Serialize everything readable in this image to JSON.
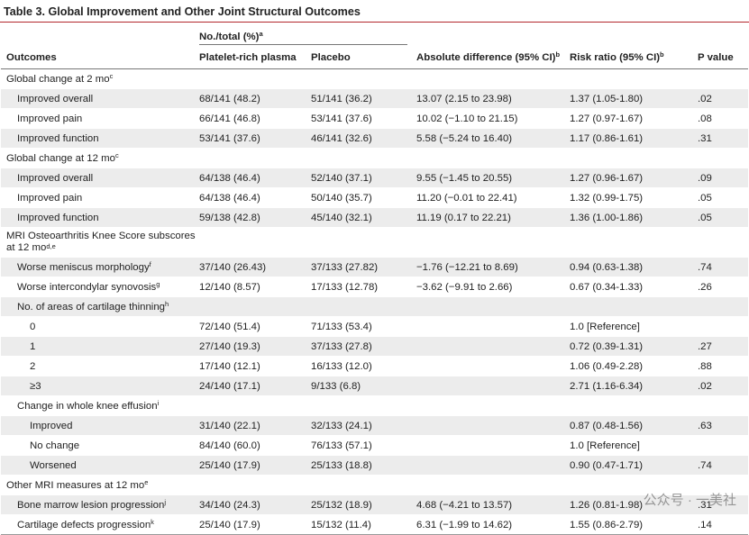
{
  "title": "Table 3. Global Improvement and Other Joint Structural Outcomes",
  "header": {
    "group": {
      "text": "No./total (%)",
      "sup": "a"
    },
    "columns": [
      {
        "text": "Outcomes"
      },
      {
        "text": "Platelet-rich plasma"
      },
      {
        "text": "Placebo"
      },
      {
        "text": "Absolute difference (95% CI)",
        "sup": "b"
      },
      {
        "text": "Risk ratio (95% CI)",
        "sup": "b"
      },
      {
        "text": "P value"
      }
    ]
  },
  "sections": [
    {
      "label": "Global change at 2 mo",
      "sup": "c",
      "items": [
        {
          "label": "Improved overall",
          "cells": [
            "68/141 (48.2)",
            "51/141 (36.2)",
            "13.07 (2.15 to 23.98)",
            "1.37 (1.05-1.80)",
            ".02"
          ]
        },
        {
          "label": "Improved pain",
          "cells": [
            "66/141 (46.8)",
            "53/141 (37.6)",
            "10.02 (−1.10 to 21.15)",
            "1.27 (0.97-1.67)",
            ".08"
          ]
        },
        {
          "label": "Improved function",
          "cells": [
            "53/141 (37.6)",
            "46/141 (32.6)",
            "5.58 (−5.24 to 16.40)",
            "1.17 (0.86-1.61)",
            ".31"
          ]
        }
      ]
    },
    {
      "label": "Global change at 12 mo",
      "sup": "c",
      "items": [
        {
          "label": "Improved overall",
          "cells": [
            "64/138 (46.4)",
            "52/140 (37.1)",
            "9.55 (−1.45 to 20.55)",
            "1.27 (0.96-1.67)",
            ".09"
          ]
        },
        {
          "label": "Improved pain",
          "cells": [
            "64/138 (46.4)",
            "50/140 (35.7)",
            "11.20 (−0.01 to 22.41)",
            "1.32 (0.99-1.75)",
            ".05"
          ]
        },
        {
          "label": "Improved function",
          "cells": [
            "59/138 (42.8)",
            "45/140 (32.1)",
            "11.19 (0.17 to 22.21)",
            "1.36 (1.00-1.86)",
            ".05"
          ]
        }
      ]
    },
    {
      "label": "MRI Osteoarthritis Knee Score subscores at 12 mo",
      "sup": "d,e",
      "items": [
        {
          "label": "Worse meniscus morphology",
          "sup": "f",
          "cells": [
            "37/140 (26.43)",
            "37/133 (27.82)",
            "−1.76 (−12.21 to 8.69)",
            "0.94 (0.63-1.38)",
            ".74"
          ]
        },
        {
          "label": "Worse intercondylar synovosis",
          "sup": "g",
          "cells": [
            "12/140 (8.57)",
            "17/133 (12.78)",
            "−3.62 (−9.91 to 2.66)",
            "0.67 (0.34-1.33)",
            ".26"
          ]
        },
        {
          "label": "No. of areas of cartilage thinning",
          "sup": "h",
          "rows": [
            {
              "label": "0",
              "cells": [
                "72/140 (51.4)",
                "71/133 (53.4)",
                null,
                "1.0 [Reference]",
                null
              ]
            },
            {
              "label": "1",
              "cells": [
                "27/140 (19.3)",
                "37/133 (27.8)",
                null,
                "0.72 (0.39-1.31)",
                ".27"
              ]
            },
            {
              "label": "2",
              "cells": [
                "17/140 (12.1)",
                "16/133 (12.0)",
                null,
                "1.06 (0.49-2.28)",
                ".88"
              ]
            },
            {
              "label": "≥3",
              "cells": [
                "24/140 (17.1)",
                "9/133 (6.8)",
                null,
                "2.71 (1.16-6.34)",
                ".02"
              ]
            }
          ]
        },
        {
          "label": "Change in whole knee effusion",
          "sup": "i",
          "rows": [
            {
              "label": "Improved",
              "cells": [
                "31/140 (22.1)",
                "32/133 (24.1)",
                null,
                "0.87 (0.48-1.56)",
                ".63"
              ]
            },
            {
              "label": "No change",
              "cells": [
                "84/140 (60.0)",
                "76/133 (57.1)",
                null,
                "1.0 [Reference]",
                null
              ]
            },
            {
              "label": "Worsened",
              "cells": [
                "25/140 (17.9)",
                "25/133 (18.8)",
                null,
                "0.90 (0.47-1.71)",
                ".74"
              ]
            }
          ]
        }
      ]
    },
    {
      "label": "Other MRI measures at 12 mo",
      "sup": "e",
      "items": [
        {
          "label": "Bone marrow lesion progression",
          "sup": "j",
          "cells": [
            "34/140 (24.3)",
            "25/132 (18.9)",
            "4.68 (−4.21 to 13.57)",
            "1.26 (0.81-1.98)",
            ".31"
          ]
        },
        {
          "label": "Cartilage defects progression",
          "sup": "k",
          "cells": [
            "25/140 (17.9)",
            "15/132 (11.4)",
            "6.31 (−1.99 to 14.62)",
            "1.55 (0.86-2.79)",
            ".14"
          ]
        }
      ]
    }
  ],
  "watermark": "公众号 · 一美社"
}
